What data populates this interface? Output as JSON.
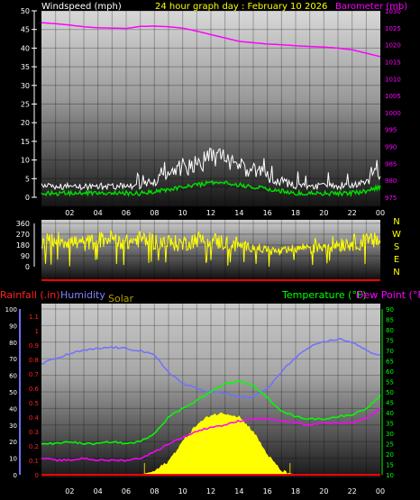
{
  "header": {
    "left_title": "Windspeed (mph)",
    "center_title": "24 hour graph day : February 10 2026",
    "right_title": "Barometer (mb)"
  },
  "colors": {
    "wind": "#ffffff",
    "gust": "#cfcfcf",
    "wind_avg": "#00e000",
    "barometer": "#ff00ff",
    "direction": "#ffff00",
    "rain": "#ff0000",
    "humidity": "#7070ff",
    "solar": "#ffff00",
    "temperature": "#00ff00",
    "dewpoint": "#ff00ff"
  },
  "wind_panel": {
    "left_ticks": [
      "50",
      "45",
      "40",
      "35",
      "30",
      "25",
      "20",
      "15",
      "10",
      "5",
      "0"
    ],
    "right_ticks": [
      "1030",
      "1025",
      "1020",
      "1015",
      "1010",
      "1005",
      "1000",
      "995",
      "990",
      "985",
      "980",
      "975"
    ]
  },
  "dir_panel": {
    "left_ticks": [
      "360",
      "270",
      "180",
      "90",
      "0"
    ],
    "compass": [
      "N",
      "W",
      "S",
      "E",
      "N"
    ]
  },
  "bottom_panel": {
    "labels": {
      "rainfall": "Rainfall (.in)",
      "humidity": "Humidity",
      "solar": "Solar",
      "temperature": "Temperature (°F)",
      "dewpoint": "Dew Point (°F)"
    },
    "humidity_ticks": [
      "100",
      "90",
      "80",
      "70",
      "60",
      "50",
      "40",
      "30",
      "20",
      "10",
      "0"
    ],
    "rain_ticks": [
      "1.1",
      "1",
      "0.9",
      "0.8",
      "0.7",
      "0.6",
      "0.5",
      "0.4",
      "0.3",
      "0.2",
      "0.1",
      "0"
    ],
    "temp_ticks": [
      "90",
      "85",
      "80",
      "75",
      "70",
      "65",
      "60",
      "55",
      "50",
      "45",
      "40",
      "35",
      "30",
      "25",
      "20",
      "15",
      "10"
    ]
  },
  "x_ticks": [
    "02",
    "04",
    "06",
    "08",
    "10",
    "12",
    "14",
    "16",
    "18",
    "20",
    "22",
    "00"
  ],
  "chart_data": [
    {
      "type": "line",
      "title": "24 hour graph day : February 10 2026",
      "x": [
        0,
        1,
        2,
        3,
        4,
        5,
        6,
        7,
        8,
        9,
        10,
        11,
        12,
        13,
        14,
        15,
        16,
        17,
        18,
        19,
        20,
        21,
        22,
        23,
        24
      ],
      "series": [
        {
          "name": "Windspeed (mph)",
          "values": [
            2,
            2,
            2,
            2,
            2,
            2,
            2,
            2,
            3,
            4,
            5,
            6,
            7,
            7,
            6,
            5,
            4,
            3,
            2,
            2,
            2,
            2,
            2,
            3,
            5
          ]
        },
        {
          "name": "Barometer (mb)",
          "values": [
            1026.5,
            1026.2,
            1025.8,
            1025.3,
            1025.0,
            1024.9,
            1024.8,
            1025.4,
            1025.5,
            1025.3,
            1024.9,
            1024.0,
            1023.0,
            1022.0,
            1021.0,
            1020.6,
            1020.2,
            1020.0,
            1019.7,
            1019.5,
            1019.3,
            1019.0,
            1018.5,
            1017.5,
            1016.5
          ]
        }
      ],
      "ylabel": "Windspeed (mph)",
      "ylim": [
        0,
        50
      ],
      "y2label": "Barometer (mb)",
      "y2lim": [
        975,
        1030
      ]
    },
    {
      "type": "line",
      "x": [
        0,
        1,
        2,
        3,
        4,
        5,
        6,
        7,
        8,
        9,
        10,
        11,
        12,
        13,
        14,
        15,
        16,
        17,
        18,
        19,
        20,
        21,
        22,
        23,
        24
      ],
      "series": [
        {
          "name": "Wind direction",
          "values": [
            200,
            230,
            210,
            190,
            220,
            240,
            200,
            230,
            210,
            200,
            190,
            230,
            220,
            200,
            180,
            160,
            140,
            120,
            150,
            170,
            180,
            190,
            200,
            210,
            220
          ]
        }
      ],
      "ylim": [
        0,
        360
      ]
    },
    {
      "type": "line",
      "x": [
        0,
        1,
        2,
        3,
        4,
        5,
        6,
        7,
        8,
        9,
        10,
        11,
        12,
        13,
        14,
        15,
        16,
        17,
        18,
        19,
        20,
        21,
        22,
        23,
        24
      ],
      "series": [
        {
          "name": "Humidity",
          "values": [
            67,
            70,
            73,
            75,
            76,
            77,
            76,
            75,
            72,
            62,
            55,
            52,
            50,
            49,
            47,
            47,
            52,
            62,
            71,
            77,
            80,
            82,
            80,
            75,
            72
          ]
        },
        {
          "name": "Solar",
          "values": [
            0,
            0,
            0,
            0,
            0,
            0,
            0,
            0,
            2,
            8,
            20,
            30,
            36,
            37,
            35,
            26,
            12,
            2,
            0,
            0,
            0,
            0,
            0,
            0,
            0
          ]
        },
        {
          "name": "Rainfall (.in)",
          "values": [
            0,
            0,
            0,
            0,
            0,
            0,
            0,
            0,
            0,
            0,
            0,
            0,
            0,
            0,
            0,
            0,
            0,
            0,
            0,
            0,
            0,
            0,
            0,
            0,
            0
          ]
        },
        {
          "name": "Temperature (°F)",
          "values": [
            25,
            25,
            26,
            25,
            25,
            26,
            25,
            26,
            30,
            38,
            42,
            46,
            50,
            54,
            55,
            53,
            47,
            41,
            38,
            37,
            37,
            38,
            39,
            42,
            48
          ]
        },
        {
          "name": "Dew Point (°F)",
          "values": [
            18,
            17,
            17,
            18,
            17,
            17,
            17,
            18,
            21,
            25,
            28,
            31,
            33,
            34,
            36,
            37,
            37,
            36,
            35,
            34,
            35,
            35,
            35,
            37,
            42
          ]
        }
      ],
      "ylabel": "Humidity",
      "ylim": [
        0,
        100
      ],
      "y2label": "Temperature (°F)",
      "y2lim": [
        10,
        90
      ]
    }
  ]
}
